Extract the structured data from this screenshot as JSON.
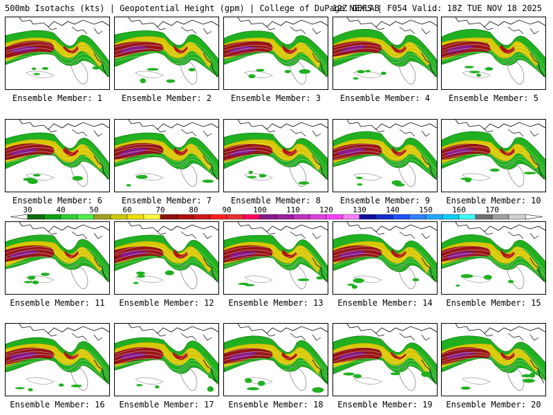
{
  "header": {
    "left": "500mb Isotachs (kts) | Geopotential Height (gpm) | College of DuPage NEXLAB",
    "right": "12Z GEFS | F054 Valid: 18Z TUE NOV 18 2025"
  },
  "members": [
    {
      "caption": "Ensemble Member: 1"
    },
    {
      "caption": "Ensemble Member: 2"
    },
    {
      "caption": "Ensemble Member: 3"
    },
    {
      "caption": "Ensemble Member: 4"
    },
    {
      "caption": "Ensemble Member: 5"
    },
    {
      "caption": "Ensemble Member: 6"
    },
    {
      "caption": "Ensemble Member: 7"
    },
    {
      "caption": "Ensemble Member: 8"
    },
    {
      "caption": "Ensemble Member: 9"
    },
    {
      "caption": "Ensemble Member: 10"
    },
    {
      "caption": "Ensemble Member: 11"
    },
    {
      "caption": "Ensemble Member: 12"
    },
    {
      "caption": "Ensemble Member: 13"
    },
    {
      "caption": "Ensemble Member: 14"
    },
    {
      "caption": "Ensemble Member: 15"
    },
    {
      "caption": "Ensemble Member: 16"
    },
    {
      "caption": "Ensemble Member: 17"
    },
    {
      "caption": "Ensemble Member: 18"
    },
    {
      "caption": "Ensemble Member: 19"
    },
    {
      "caption": "Ensemble Member: 20"
    }
  ],
  "colorbar": {
    "labels": [
      "30",
      "40",
      "50",
      "60",
      "70",
      "80",
      "90",
      "100",
      "110",
      "120",
      "130",
      "140",
      "150",
      "160",
      "170"
    ],
    "colors": [
      "#0a6e0a",
      "#10a010",
      "#30d030",
      "#4cf04c",
      "#a0a020",
      "#d0c800",
      "#f0e000",
      "#ffff40",
      "#901010",
      "#b01010",
      "#d01818",
      "#ff2020",
      "#e83030",
      "#ff0060",
      "#8a1a8a",
      "#a020a0",
      "#c030c0",
      "#e040e0",
      "#ff40ff",
      "#ff80ff",
      "#1010a0",
      "#1030d0",
      "#2050ff",
      "#3080ff",
      "#20a8ff",
      "#00d0ff",
      "#40ffff",
      "#707070",
      "#a0a0a0",
      "#d0d0d0"
    ]
  }
}
